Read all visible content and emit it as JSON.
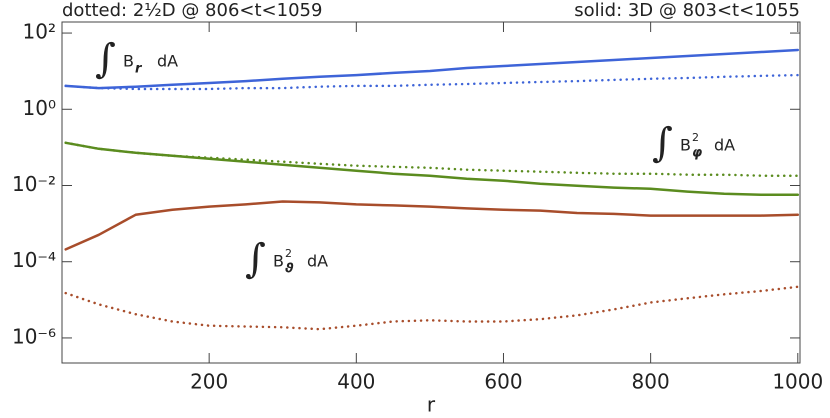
{
  "chart_data": {
    "type": "line",
    "title_left": "dotted: 2½D @ 806<t<1059",
    "title_right": "solid: 3D @ 803<t<1055",
    "xlabel": "r",
    "log_y": true,
    "xlim": [
      0,
      1003
    ],
    "ylim": [
      2.2e-07,
      195
    ],
    "xticks": [
      200,
      400,
      600,
      800,
      1000
    ],
    "yticks": [
      {
        "value": 100,
        "label": "10²"
      },
      {
        "value": 1,
        "label": "10⁰"
      },
      {
        "value": 0.01,
        "label": "10⁻²"
      },
      {
        "value": 0.0001,
        "label": "10⁻⁴"
      },
      {
        "value": 1e-06,
        "label": "10⁻⁶"
      }
    ],
    "annotations": [
      {
        "integral": "∫",
        "symbol": "B",
        "index": "r",
        "tail": "dA",
        "color": "#4a6fdc"
      },
      {
        "integral": "∫",
        "symbol": "B",
        "index": "φ",
        "power": "2",
        "tail": "dA",
        "color": "#6b9a2a"
      },
      {
        "integral": "∫",
        "symbol": "B",
        "index": "ϑ",
        "power": "2",
        "tail": "dA",
        "color": "#b0552f"
      }
    ],
    "x": [
      5,
      50,
      100,
      150,
      200,
      250,
      300,
      350,
      400,
      450,
      500,
      550,
      600,
      650,
      700,
      750,
      800,
      850,
      900,
      950,
      1000
    ],
    "series": [
      {
        "color": "#3e64d8",
        "dash": false,
        "values": [
          4.1,
          3.6,
          3.9,
          4.4,
          4.9,
          5.5,
          6.3,
          7.1,
          7.9,
          9.0,
          10.1,
          12.1,
          13.7,
          15.4,
          17.4,
          19.6,
          22.2,
          25.0,
          28.2,
          31.8,
          35.9
        ]
      },
      {
        "color": "#3e64d8",
        "dash": true,
        "values": [
          4.1,
          3.6,
          3.4,
          3.4,
          3.4,
          3.6,
          3.6,
          3.9,
          4.1,
          4.1,
          4.4,
          4.6,
          4.9,
          5.2,
          5.5,
          5.9,
          6.3,
          6.6,
          7.1,
          7.5,
          7.9
        ]
      },
      {
        "color": "#5b8c1f",
        "dash": false,
        "values": [
          0.132,
          0.0918,
          0.0722,
          0.0603,
          0.0503,
          0.042,
          0.0351,
          0.0292,
          0.0244,
          0.0204,
          0.0181,
          0.0151,
          0.0134,
          0.0111,
          0.0099,
          0.0088,
          0.0082,
          0.0069,
          0.0061,
          0.0057,
          0.0057
        ]
      },
      {
        "color": "#5b8c1f",
        "dash": true,
        "values": [
          0.132,
          0.0918,
          0.0722,
          0.0603,
          0.0535,
          0.0474,
          0.042,
          0.0372,
          0.033,
          0.031,
          0.0292,
          0.0259,
          0.0244,
          0.023,
          0.0216,
          0.0204,
          0.0204,
          0.0192,
          0.0192,
          0.0181,
          0.0181
        ]
      },
      {
        "color": "#a84d2b",
        "dash": false,
        "values": [
          0.00021,
          0.00051,
          0.0017,
          0.0023,
          0.0028,
          0.0032,
          0.0038,
          0.0036,
          0.0032,
          0.003,
          0.0028,
          0.0025,
          0.0023,
          0.0022,
          0.0019,
          0.0018,
          0.00162,
          0.00162,
          0.00162,
          0.00162,
          0.0017
        ]
      },
      {
        "color": "#a84d2b",
        "dash": true,
        "values": [
          1.5e-05,
          7.6e-06,
          4.2e-06,
          2.7e-06,
          2.1e-06,
          2e-06,
          1.9e-06,
          1.7e-06,
          2.1e-06,
          2.7e-06,
          2.9e-06,
          2.7e-06,
          2.7e-06,
          3.1e-06,
          3.9e-06,
          5.6e-06,
          8.5e-06,
          1.1e-05,
          1.4e-05,
          1.7e-05,
          2.2e-05
        ]
      }
    ]
  }
}
